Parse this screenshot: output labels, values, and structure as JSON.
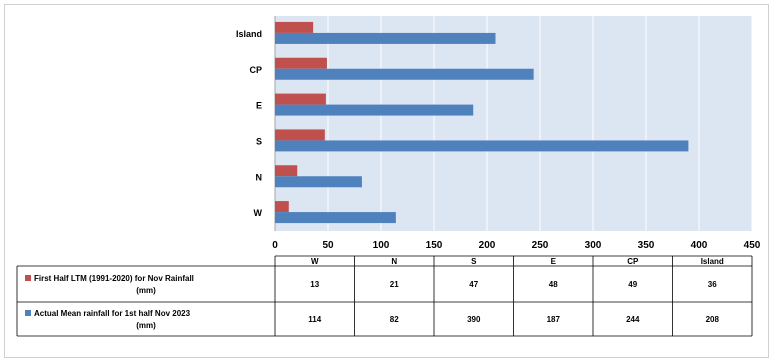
{
  "chart_data": {
    "type": "bar",
    "orientation": "horizontal",
    "categories": [
      "W",
      "N",
      "S",
      "E",
      "CP",
      "Island"
    ],
    "series": [
      {
        "name": "First Half LTM (1991-2020) for Nov Rainfall (mm)",
        "name_lines": [
          "First Half LTM (1991-2020) for Nov Rainfall",
          "(mm)"
        ],
        "values": [
          13,
          21,
          47,
          48,
          49,
          36
        ],
        "color": "#c0504d"
      },
      {
        "name": "Actual Mean rainfall for 1st half Nov 2023 (mm)",
        "name_lines": [
          "Actual Mean rainfall for 1st half Nov 2023",
          "(mm)"
        ],
        "values": [
          114,
          82,
          390,
          187,
          244,
          208
        ],
        "color": "#4f81bd"
      }
    ],
    "xlim": [
      0,
      450
    ],
    "xticks": [
      0,
      50,
      100,
      150,
      200,
      250,
      300,
      350,
      400,
      450
    ],
    "grid": true,
    "plot_background": "#dce6f2",
    "legend": "data-table-below"
  }
}
